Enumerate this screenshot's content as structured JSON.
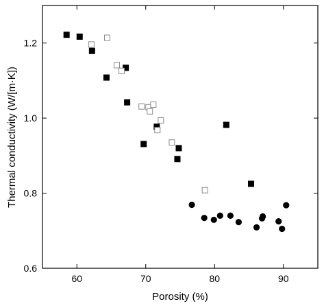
{
  "chart_data": {
    "type": "scatter",
    "xlabel": "Porosity (%)",
    "ylabel": "Thermal conductivity (W/[m·K])",
    "xlim": [
      55,
      95
    ],
    "ylim": [
      0.6,
      1.3
    ],
    "xticks": [
      60,
      70,
      80,
      90
    ],
    "yticks": [
      0.6,
      0.8,
      1.0,
      1.2
    ],
    "xtick_labels": [
      "60",
      "70",
      "80",
      "90"
    ],
    "ytick_labels": [
      "0.6",
      "0.8",
      "1.0",
      "1.2"
    ],
    "grid": false,
    "series": [
      {
        "marker": "filled-square",
        "color": "#000000",
        "points": [
          [
            58.5,
            1.222
          ],
          [
            60.4,
            1.217
          ],
          [
            62.2,
            1.179
          ],
          [
            64.3,
            1.108
          ],
          [
            67.1,
            1.134
          ],
          [
            67.3,
            1.042
          ],
          [
            69.7,
            0.931
          ],
          [
            71.6,
            0.977
          ],
          [
            74.6,
            0.891
          ],
          [
            74.8,
            0.92
          ],
          [
            81.7,
            0.982
          ],
          [
            85.3,
            0.825
          ]
        ]
      },
      {
        "marker": "open-square",
        "color": "#000000",
        "points": [
          [
            62.1,
            1.196
          ],
          [
            64.4,
            1.214
          ],
          [
            65.8,
            1.141
          ],
          [
            66.5,
            1.126
          ],
          [
            69.4,
            1.031
          ],
          [
            70.4,
            1.029
          ],
          [
            70.6,
            1.018
          ],
          [
            71.1,
            1.036
          ],
          [
            71.7,
            0.968
          ],
          [
            72.2,
            0.994
          ],
          [
            73.8,
            0.935
          ],
          [
            78.6,
            0.808
          ]
        ]
      },
      {
        "marker": "filled-circle",
        "color": "#000000",
        "points": [
          [
            76.7,
            0.769
          ],
          [
            78.5,
            0.734
          ],
          [
            79.9,
            0.729
          ],
          [
            80.8,
            0.74
          ],
          [
            82.3,
            0.74
          ],
          [
            83.5,
            0.723
          ],
          [
            86.1,
            0.709
          ],
          [
            86.9,
            0.733
          ],
          [
            87.0,
            0.738
          ],
          [
            89.3,
            0.725
          ],
          [
            89.8,
            0.705
          ],
          [
            90.4,
            0.768
          ]
        ]
      }
    ]
  }
}
